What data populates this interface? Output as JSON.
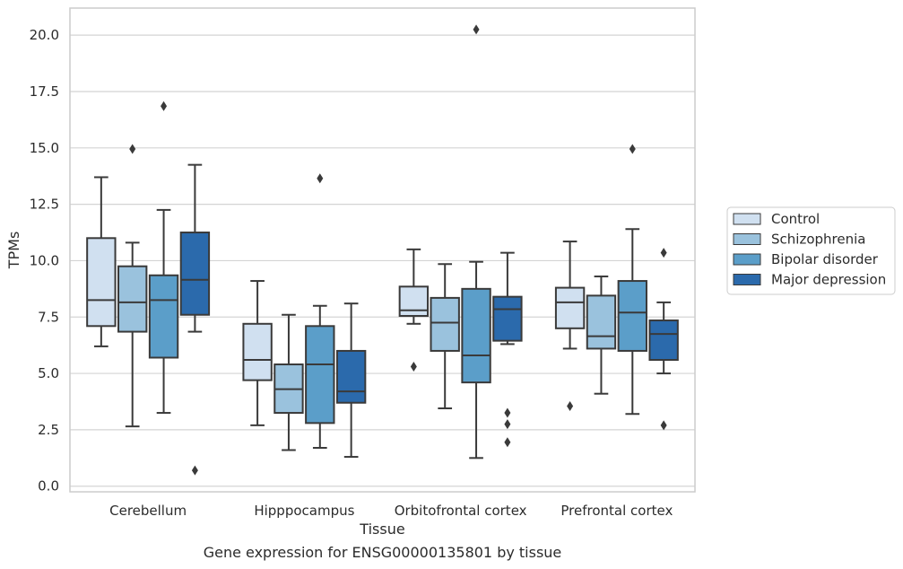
{
  "chart_data": {
    "type": "boxplot",
    "title": "",
    "caption": "Gene expression for ENSG00000135801 by tissue",
    "xlabel": "Tissue",
    "ylabel": "TPMs",
    "ylim": [
      -0.25,
      21.2
    ],
    "yticks": [
      0.0,
      2.5,
      5.0,
      7.5,
      10.0,
      12.5,
      15.0,
      17.5,
      20.0
    ],
    "ytick_labels": [
      "0.0",
      "2.5",
      "5.0",
      "7.5",
      "10.0",
      "12.5",
      "15.0",
      "17.5",
      "20.0"
    ],
    "grid": "horizontal",
    "legend_placement": "right",
    "categories": [
      "Cerebellum",
      "Hipppocampus",
      "Orbitofrontal cortex",
      "Prefrontal cortex"
    ],
    "series": [
      {
        "name": "Control",
        "color": "#d0e0f0",
        "boxes": [
          {
            "min": 6.2,
            "q1": 7.1,
            "median": 8.25,
            "q3": 11.0,
            "max": 13.7,
            "outliers": []
          },
          {
            "min": 2.7,
            "q1": 4.7,
            "median": 5.6,
            "q3": 7.2,
            "max": 9.1,
            "outliers": []
          },
          {
            "min": 7.2,
            "q1": 7.55,
            "median": 7.8,
            "q3": 8.85,
            "max": 10.5,
            "outliers": [
              5.3
            ]
          },
          {
            "min": 6.1,
            "q1": 7.0,
            "median": 8.15,
            "q3": 8.8,
            "max": 10.85,
            "outliers": [
              3.55
            ]
          }
        ]
      },
      {
        "name": "Schizophrenia",
        "color": "#9ac2dd",
        "boxes": [
          {
            "min": 2.65,
            "q1": 6.85,
            "median": 8.15,
            "q3": 9.75,
            "max": 10.8,
            "outliers": [
              14.95
            ]
          },
          {
            "min": 1.6,
            "q1": 3.25,
            "median": 4.3,
            "q3": 5.4,
            "max": 7.6,
            "outliers": []
          },
          {
            "min": 3.45,
            "q1": 6.0,
            "median": 7.25,
            "q3": 8.35,
            "max": 9.85,
            "outliers": []
          },
          {
            "min": 4.1,
            "q1": 6.1,
            "median": 6.65,
            "q3": 8.45,
            "max": 9.3,
            "outliers": []
          }
        ]
      },
      {
        "name": "Bipolar disorder",
        "color": "#5b9ec9",
        "boxes": [
          {
            "min": 3.25,
            "q1": 5.7,
            "median": 8.25,
            "q3": 9.35,
            "max": 12.25,
            "outliers": [
              16.85
            ]
          },
          {
            "min": 1.7,
            "q1": 2.8,
            "median": 5.4,
            "q3": 7.1,
            "max": 8.0,
            "outliers": [
              13.65
            ]
          },
          {
            "min": 1.25,
            "q1": 4.6,
            "median": 5.8,
            "q3": 8.75,
            "max": 9.95,
            "outliers": [
              20.25
            ]
          },
          {
            "min": 3.2,
            "q1": 6.0,
            "median": 7.7,
            "q3": 9.1,
            "max": 11.4,
            "outliers": [
              14.95
            ]
          }
        ]
      },
      {
        "name": "Major depression",
        "color": "#2b6aac",
        "boxes": [
          {
            "min": 6.85,
            "q1": 7.6,
            "median": 9.15,
            "q3": 11.25,
            "max": 14.25,
            "outliers": [
              0.7
            ]
          },
          {
            "min": 1.3,
            "q1": 3.7,
            "median": 4.2,
            "q3": 6.0,
            "max": 8.1,
            "outliers": []
          },
          {
            "min": 6.3,
            "q1": 6.45,
            "median": 7.85,
            "q3": 8.4,
            "max": 10.35,
            "outliers": [
              3.25,
              2.75,
              1.95
            ]
          },
          {
            "min": 5.0,
            "q1": 5.6,
            "median": 6.75,
            "q3": 7.35,
            "max": 8.15,
            "outliers": [
              10.35,
              2.7
            ]
          }
        ]
      }
    ]
  }
}
